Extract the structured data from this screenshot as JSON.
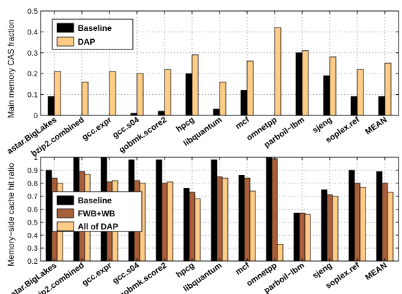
{
  "chart_data": [
    {
      "type": "bar",
      "ylabel": "Main memory CAS fraction",
      "ylim": [
        0,
        0.5
      ],
      "yticks": [
        0,
        0.1,
        0.2,
        0.3,
        0.4,
        0.5
      ],
      "ytick_labels": [
        "0",
        "0.1",
        "0.2",
        "0.3",
        "0.4",
        "0.5"
      ],
      "grid": true,
      "legend_position": "top-left",
      "categories": [
        "astar.BigLakes",
        "bzip2.combined",
        "gcc.expr",
        "gcc.s04",
        "gobmk.score2",
        "hpcg",
        "libquantum",
        "mcf",
        "omnetpp",
        "parboil−lbm",
        "sjeng",
        "soplex.ref",
        "MEAN"
      ],
      "series": [
        {
          "name": "Baseline",
          "color": "#000000",
          "values": [
            0.09,
            0.0,
            0.0,
            0.01,
            0.02,
            0.2,
            0.03,
            0.12,
            0.0,
            0.3,
            0.19,
            0.09,
            0.09
          ]
        },
        {
          "name": "DAP",
          "color": "#ffcc88",
          "values": [
            0.21,
            0.16,
            0.21,
            0.2,
            0.22,
            0.29,
            0.16,
            0.26,
            0.42,
            0.31,
            0.28,
            0.22,
            0.25
          ]
        }
      ]
    },
    {
      "type": "bar",
      "ylabel": "Memory−side cache hit ratio",
      "ylim": [
        0.2,
        1.0
      ],
      "yticks": [
        0.2,
        0.3,
        0.4,
        0.5,
        0.6,
        0.7,
        0.8,
        0.9,
        1.0
      ],
      "ytick_labels": [
        "0.2",
        "0.3",
        "0.4",
        "0.5",
        "0.6",
        "0.7",
        "0.8",
        "0.9",
        "1"
      ],
      "grid": true,
      "legend_position": "middle-left",
      "categories": [
        "astar.BigLakes",
        "bzip2.combined",
        "gcc.expr",
        "gcc.s04",
        "gobmk.score2",
        "hpcg",
        "libquantum",
        "mcf",
        "omnetpp",
        "parboil−lbm",
        "sjeng",
        "soplex.ref",
        "MEAN"
      ],
      "series": [
        {
          "name": "Baseline",
          "color": "#000000",
          "values": [
            0.9,
            1.0,
            1.0,
            0.98,
            0.98,
            0.76,
            0.98,
            0.86,
            1.0,
            0.57,
            0.75,
            0.9,
            0.89
          ]
        },
        {
          "name": "FWB+WB",
          "color": "#a9603a",
          "values": [
            0.84,
            0.89,
            0.81,
            0.82,
            0.8,
            0.73,
            0.85,
            0.84,
            0.99,
            0.57,
            0.71,
            0.8,
            0.8
          ]
        },
        {
          "name": "All of DAP",
          "color": "#ffcc88",
          "values": [
            0.8,
            0.87,
            0.82,
            0.8,
            0.81,
            0.68,
            0.84,
            0.74,
            0.33,
            0.56,
            0.7,
            0.77,
            0.73
          ]
        }
      ]
    }
  ]
}
